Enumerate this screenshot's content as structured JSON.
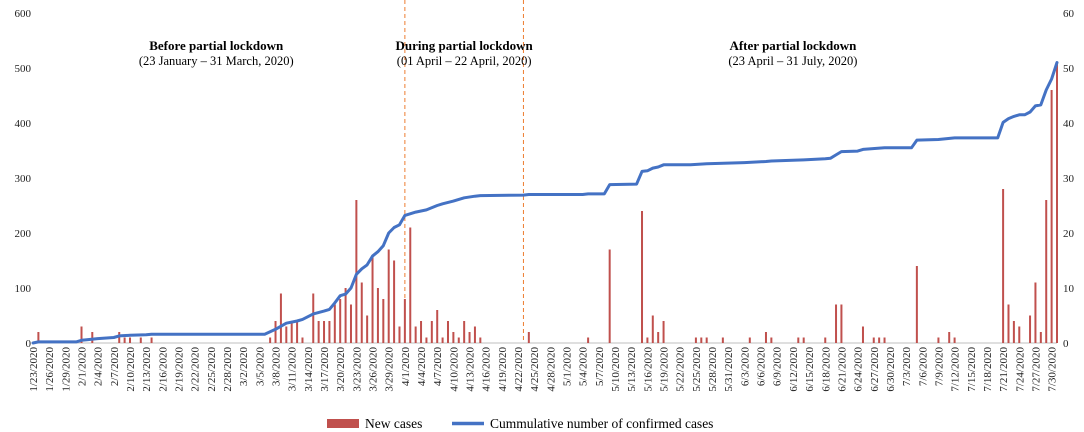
{
  "chart_data": {
    "type": "bar+line",
    "title": "",
    "left_axis": {
      "min": 0,
      "max": 600,
      "ticks": [
        0,
        100,
        200,
        300,
        400,
        500,
        600
      ]
    },
    "right_axis": {
      "min": 0,
      "max": 60,
      "ticks": [
        0,
        10,
        20,
        30,
        40,
        50,
        60
      ]
    },
    "x_tick_labels": [
      "1/23/2020",
      "1/26/2020",
      "1/29/2020",
      "2/1/2020",
      "2/4/2020",
      "2/7/2020",
      "2/10/2020",
      "2/13/2020",
      "2/16/2020",
      "2/19/2020",
      "2/22/2020",
      "2/25/2020",
      "2/28/2020",
      "3/2/2020",
      "3/5/2020",
      "3/8/2020",
      "3/11/2020",
      "3/14/2020",
      "3/17/2020",
      "3/20/2020",
      "3/23/2020",
      "3/26/2020",
      "3/29/2020",
      "4/1/2020",
      "4/4/2020",
      "4/7/2020",
      "4/10/2020",
      "4/13/2020",
      "4/16/2020",
      "4/19/2020",
      "4/22/2020",
      "4/25/2020",
      "4/28/2020",
      "5/1/2020",
      "5/4/2020",
      "5/7/2020",
      "5/10/2020",
      "5/13/2020",
      "5/16/2020",
      "5/19/2020",
      "5/22/2020",
      "5/25/2020",
      "5/28/2020",
      "5/31/2020",
      "6/3/2020",
      "6/6/2020",
      "6/9/2020",
      "6/12/2020",
      "6/15/2020",
      "6/18/2020",
      "6/21/2020",
      "6/24/2020",
      "6/27/2020",
      "6/30/2020",
      "7/3/2020",
      "7/6/2020",
      "7/9/2020",
      "7/12/2020",
      "7/15/2020",
      "7/18/2020",
      "7/21/2020",
      "7/24/2020",
      "7/27/2020",
      "7/30/2020"
    ],
    "new_cases": [
      {
        "date": "1/24/2020",
        "value": 20
      },
      {
        "date": "2/1/2020",
        "value": 30
      },
      {
        "date": "2/3/2020",
        "value": 20
      },
      {
        "date": "2/8/2020",
        "value": 20
      },
      {
        "date": "2/9/2020",
        "value": 10
      },
      {
        "date": "2/10/2020",
        "value": 10
      },
      {
        "date": "2/12/2020",
        "value": 10
      },
      {
        "date": "2/14/2020",
        "value": 10
      },
      {
        "date": "3/7/2020",
        "value": 10
      },
      {
        "date": "3/8/2020",
        "value": 40
      },
      {
        "date": "3/9/2020",
        "value": 90
      },
      {
        "date": "3/10/2020",
        "value": 30
      },
      {
        "date": "3/11/2020",
        "value": 40
      },
      {
        "date": "3/12/2020",
        "value": 40
      },
      {
        "date": "3/13/2020",
        "value": 10
      },
      {
        "date": "3/15/2020",
        "value": 90
      },
      {
        "date": "3/16/2020",
        "value": 40
      },
      {
        "date": "3/17/2020",
        "value": 40
      },
      {
        "date": "3/18/2020",
        "value": 40
      },
      {
        "date": "3/19/2020",
        "value": 70
      },
      {
        "date": "3/20/2020",
        "value": 80
      },
      {
        "date": "3/21/2020",
        "value": 100
      },
      {
        "date": "3/22/2020",
        "value": 70
      },
      {
        "date": "3/23/2020",
        "value": 260
      },
      {
        "date": "3/24/2020",
        "value": 110
      },
      {
        "date": "3/25/2020",
        "value": 50
      },
      {
        "date": "3/26/2020",
        "value": 160
      },
      {
        "date": "3/27/2020",
        "value": 100
      },
      {
        "date": "3/28/2020",
        "value": 80
      },
      {
        "date": "3/29/2020",
        "value": 170
      },
      {
        "date": "3/30/2020",
        "value": 150
      },
      {
        "date": "3/31/2020",
        "value": 30
      },
      {
        "date": "4/1/2020",
        "value": 80
      },
      {
        "date": "4/2/2020",
        "value": 210
      },
      {
        "date": "4/3/2020",
        "value": 30
      },
      {
        "date": "4/4/2020",
        "value": 40
      },
      {
        "date": "4/5/2020",
        "value": 10
      },
      {
        "date": "4/6/2020",
        "value": 40
      },
      {
        "date": "4/7/2020",
        "value": 60
      },
      {
        "date": "4/8/2020",
        "value": 10
      },
      {
        "date": "4/9/2020",
        "value": 40
      },
      {
        "date": "4/10/2020",
        "value": 20
      },
      {
        "date": "4/11/2020",
        "value": 10
      },
      {
        "date": "4/12/2020",
        "value": 40
      },
      {
        "date": "4/13/2020",
        "value": 20
      },
      {
        "date": "4/14/2020",
        "value": 30
      },
      {
        "date": "4/15/2020",
        "value": 10
      },
      {
        "date": "4/24/2020",
        "value": 20
      },
      {
        "date": "5/5/2020",
        "value": 10
      },
      {
        "date": "5/9/2020",
        "value": 170
      },
      {
        "date": "5/15/2020",
        "value": 240
      },
      {
        "date": "5/16/2020",
        "value": 10
      },
      {
        "date": "5/17/2020",
        "value": 50
      },
      {
        "date": "5/18/2020",
        "value": 20
      },
      {
        "date": "5/19/2020",
        "value": 40
      },
      {
        "date": "5/25/2020",
        "value": 10
      },
      {
        "date": "5/26/2020",
        "value": 10
      },
      {
        "date": "5/27/2020",
        "value": 10
      },
      {
        "date": "5/30/2020",
        "value": 10
      },
      {
        "date": "6/4/2020",
        "value": 10
      },
      {
        "date": "6/7/2020",
        "value": 20
      },
      {
        "date": "6/8/2020",
        "value": 10
      },
      {
        "date": "6/13/2020",
        "value": 10
      },
      {
        "date": "6/14/2020",
        "value": 10
      },
      {
        "date": "6/18/2020",
        "value": 10
      },
      {
        "date": "6/20/2020",
        "value": 70
      },
      {
        "date": "6/21/2020",
        "value": 70
      },
      {
        "date": "6/25/2020",
        "value": 30
      },
      {
        "date": "6/27/2020",
        "value": 10
      },
      {
        "date": "6/28/2020",
        "value": 10
      },
      {
        "date": "6/29/2020",
        "value": 10
      },
      {
        "date": "7/5/2020",
        "value": 140
      },
      {
        "date": "7/9/2020",
        "value": 10
      },
      {
        "date": "7/11/2020",
        "value": 20
      },
      {
        "date": "7/12/2020",
        "value": 10
      },
      {
        "date": "7/21/2020",
        "value": 280
      },
      {
        "date": "7/22/2020",
        "value": 70
      },
      {
        "date": "7/23/2020",
        "value": 40
      },
      {
        "date": "7/24/2020",
        "value": 30
      },
      {
        "date": "7/26/2020",
        "value": 50
      },
      {
        "date": "7/27/2020",
        "value": 110
      },
      {
        "date": "7/28/2020",
        "value": 20
      },
      {
        "date": "7/29/2020",
        "value": 260
      },
      {
        "date": "7/30/2020",
        "value": 460
      },
      {
        "date": "7/31/2020",
        "value": 510
      }
    ],
    "cumulative_cases": [
      {
        "date": "1/23/2020",
        "value": 0
      },
      {
        "date": "1/24/2020",
        "value": 0.2
      },
      {
        "date": "1/31/2020",
        "value": 0.2
      },
      {
        "date": "2/1/2020",
        "value": 0.5
      },
      {
        "date": "2/2/2020",
        "value": 0.6
      },
      {
        "date": "2/4/2020",
        "value": 0.8
      },
      {
        "date": "2/7/2020",
        "value": 1.0
      },
      {
        "date": "2/8/2020",
        "value": 1.3
      },
      {
        "date": "2/10/2020",
        "value": 1.4
      },
      {
        "date": "2/13/2020",
        "value": 1.5
      },
      {
        "date": "2/14/2020",
        "value": 1.6
      },
      {
        "date": "3/4/2020",
        "value": 1.6
      },
      {
        "date": "3/6/2020",
        "value": 1.6
      },
      {
        "date": "3/8/2020",
        "value": 2.5
      },
      {
        "date": "3/10/2020",
        "value": 3.6
      },
      {
        "date": "3/12/2020",
        "value": 4.0
      },
      {
        "date": "3/13/2020",
        "value": 4.3
      },
      {
        "date": "3/15/2020",
        "value": 5.3
      },
      {
        "date": "3/17/2020",
        "value": 5.8
      },
      {
        "date": "3/18/2020",
        "value": 6.1
      },
      {
        "date": "3/19/2020",
        "value": 7.3
      },
      {
        "date": "3/20/2020",
        "value": 8.6
      },
      {
        "date": "3/21/2020",
        "value": 8.9
      },
      {
        "date": "3/22/2020",
        "value": 10.0
      },
      {
        "date": "3/23/2020",
        "value": 12.5
      },
      {
        "date": "3/24/2020",
        "value": 13.5
      },
      {
        "date": "3/25/2020",
        "value": 14.2
      },
      {
        "date": "3/26/2020",
        "value": 15.8
      },
      {
        "date": "3/27/2020",
        "value": 16.6
      },
      {
        "date": "3/28/2020",
        "value": 17.7
      },
      {
        "date": "3/29/2020",
        "value": 20.0
      },
      {
        "date": "3/30/2020",
        "value": 21.0
      },
      {
        "date": "3/31/2020",
        "value": 21.5
      },
      {
        "date": "4/1/2020",
        "value": 23.2
      },
      {
        "date": "4/3/2020",
        "value": 23.8
      },
      {
        "date": "4/5/2020",
        "value": 24.2
      },
      {
        "date": "4/7/2020",
        "value": 25.0
      },
      {
        "date": "4/8/2020",
        "value": 25.3
      },
      {
        "date": "4/10/2020",
        "value": 25.8
      },
      {
        "date": "4/12/2020",
        "value": 26.4
      },
      {
        "date": "4/14/2020",
        "value": 26.7
      },
      {
        "date": "4/15/2020",
        "value": 26.8
      },
      {
        "date": "4/23/2020",
        "value": 26.9
      },
      {
        "date": "4/24/2020",
        "value": 27.0
      },
      {
        "date": "5/4/2020",
        "value": 27.0
      },
      {
        "date": "5/5/2020",
        "value": 27.1
      },
      {
        "date": "5/8/2020",
        "value": 27.1
      },
      {
        "date": "5/9/2020",
        "value": 28.8
      },
      {
        "date": "5/14/2020",
        "value": 28.9
      },
      {
        "date": "5/15/2020",
        "value": 31.2
      },
      {
        "date": "5/16/2020",
        "value": 31.3
      },
      {
        "date": "5/17/2020",
        "value": 31.8
      },
      {
        "date": "5/18/2020",
        "value": 32.0
      },
      {
        "date": "5/19/2020",
        "value": 32.4
      },
      {
        "date": "5/24/2020",
        "value": 32.4
      },
      {
        "date": "5/27/2020",
        "value": 32.6
      },
      {
        "date": "6/3/2020",
        "value": 32.8
      },
      {
        "date": "6/7/2020",
        "value": 33.0
      },
      {
        "date": "6/8/2020",
        "value": 33.1
      },
      {
        "date": "6/14/2020",
        "value": 33.3
      },
      {
        "date": "6/18/2020",
        "value": 33.5
      },
      {
        "date": "6/19/2020",
        "value": 33.6
      },
      {
        "date": "6/20/2020",
        "value": 34.2
      },
      {
        "date": "6/21/2020",
        "value": 34.8
      },
      {
        "date": "6/24/2020",
        "value": 34.9
      },
      {
        "date": "6/25/2020",
        "value": 35.2
      },
      {
        "date": "6/29/2020",
        "value": 35.5
      },
      {
        "date": "7/4/2020",
        "value": 35.5
      },
      {
        "date": "7/5/2020",
        "value": 36.9
      },
      {
        "date": "7/9/2020",
        "value": 37.0
      },
      {
        "date": "7/12/2020",
        "value": 37.3
      },
      {
        "date": "7/20/2020",
        "value": 37.3
      },
      {
        "date": "7/21/2020",
        "value": 40.1
      },
      {
        "date": "7/22/2020",
        "value": 40.8
      },
      {
        "date": "7/23/2020",
        "value": 41.2
      },
      {
        "date": "7/24/2020",
        "value": 41.5
      },
      {
        "date": "7/25/2020",
        "value": 41.5
      },
      {
        "date": "7/26/2020",
        "value": 42.0
      },
      {
        "date": "7/27/2020",
        "value": 43.1
      },
      {
        "date": "7/28/2020",
        "value": 43.3
      },
      {
        "date": "7/29/2020",
        "value": 46.0
      },
      {
        "date": "7/30/2020",
        "value": 48.0
      },
      {
        "date": "7/31/2020",
        "value": 51.0
      }
    ],
    "phase_boundaries": [
      "4/1/2020",
      "4/23/2020"
    ],
    "phases": [
      {
        "title": "Before partial lockdown",
        "subtitle": "(23 January – 31 March, 2020)",
        "center_date": "2/26/2020"
      },
      {
        "title": "During partial lockdown",
        "subtitle": "(01 April – 22 April, 2020)",
        "center_date": "4/12/2020"
      },
      {
        "title": "After partial lockdown",
        "subtitle": "(23 April – 31 July, 2020)",
        "center_date": "6/12/2020"
      }
    ],
    "legend": [
      {
        "name": "New cases",
        "kind": "bar"
      },
      {
        "name": "Cummulative number of confirmed cases",
        "kind": "line"
      }
    ],
    "colors": {
      "bars": "#c0504d",
      "line": "#4472c4",
      "phase_line": "#ed7d31",
      "axis": "#bfbfbf"
    }
  }
}
